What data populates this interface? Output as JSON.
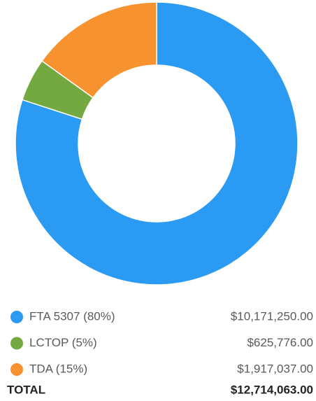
{
  "chart_data": {
    "type": "donut",
    "categories": [
      "FTA 5307 (80%)",
      "LCTOP (5%)",
      "TDA (15%)"
    ],
    "values": [
      10171250,
      625776,
      1917037
    ],
    "value_labels": [
      "$10,171,250.00",
      "$625,776.00",
      "$1,917,037.00"
    ],
    "colors": [
      "#2b9af3",
      "#74a942",
      "#f7922e"
    ],
    "total": {
      "label": "TOTAL",
      "value": 12714063,
      "value_label": "$12,714,063.00"
    }
  }
}
